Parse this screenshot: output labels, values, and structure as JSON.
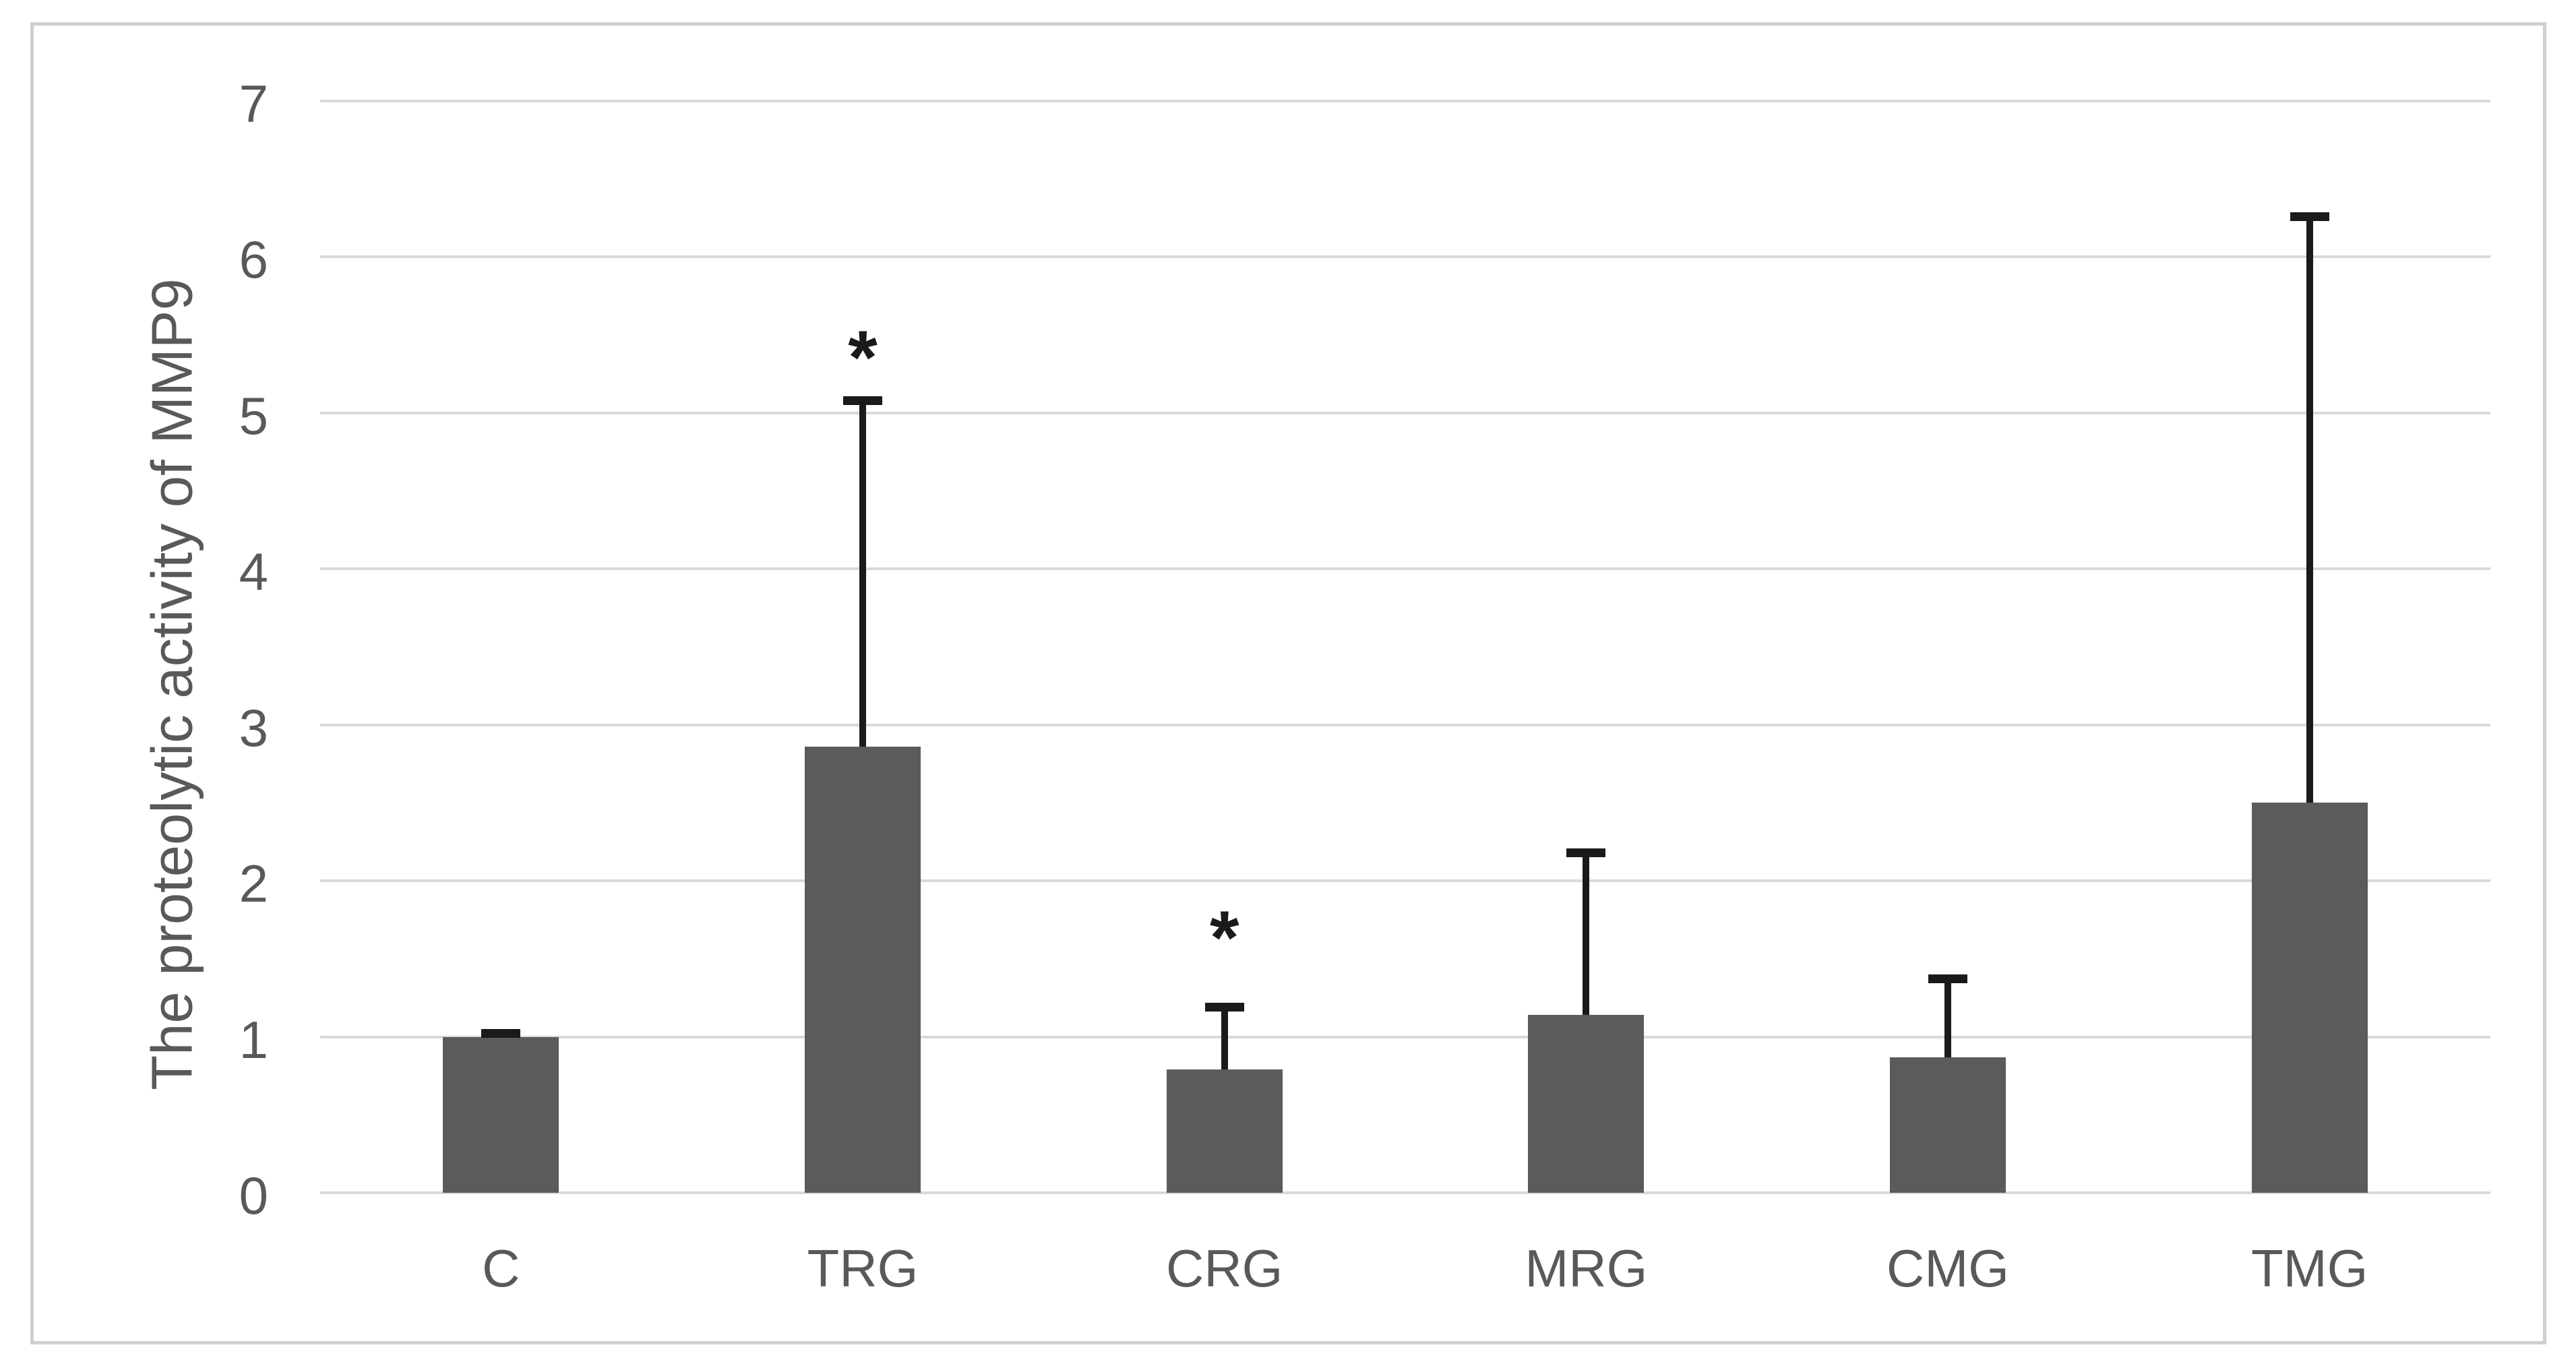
{
  "chart_data": {
    "type": "bar",
    "title": "",
    "xlabel": "",
    "ylabel": "The proteolytic activity of MMP9",
    "categories": [
      "C",
      "TRG",
      "CRG",
      "MRG",
      "CMG",
      "TMG"
    ],
    "values": [
      1.0,
      2.86,
      0.79,
      1.14,
      0.87,
      2.5
    ],
    "error_upper": [
      1.02,
      5.08,
      1.19,
      2.18,
      1.37,
      6.26
    ],
    "annotations": [
      {
        "category_index": 1,
        "text": "*",
        "y": 5.45
      },
      {
        "category_index": 2,
        "text": "*",
        "y": 1.73
      }
    ],
    "ylim": [
      0,
      7
    ],
    "yticks": [
      "0",
      "1",
      "2",
      "3",
      "4",
      "5",
      "6",
      "7"
    ],
    "grid": true,
    "legend": false,
    "colors": {
      "bar_fill": "#5b5b5b",
      "error_bar": "#1a1a1a",
      "gridline": "#d9d9d9",
      "axis_text": "#595959",
      "figure_border": "#cfcfcf",
      "background": "#ffffff"
    }
  }
}
